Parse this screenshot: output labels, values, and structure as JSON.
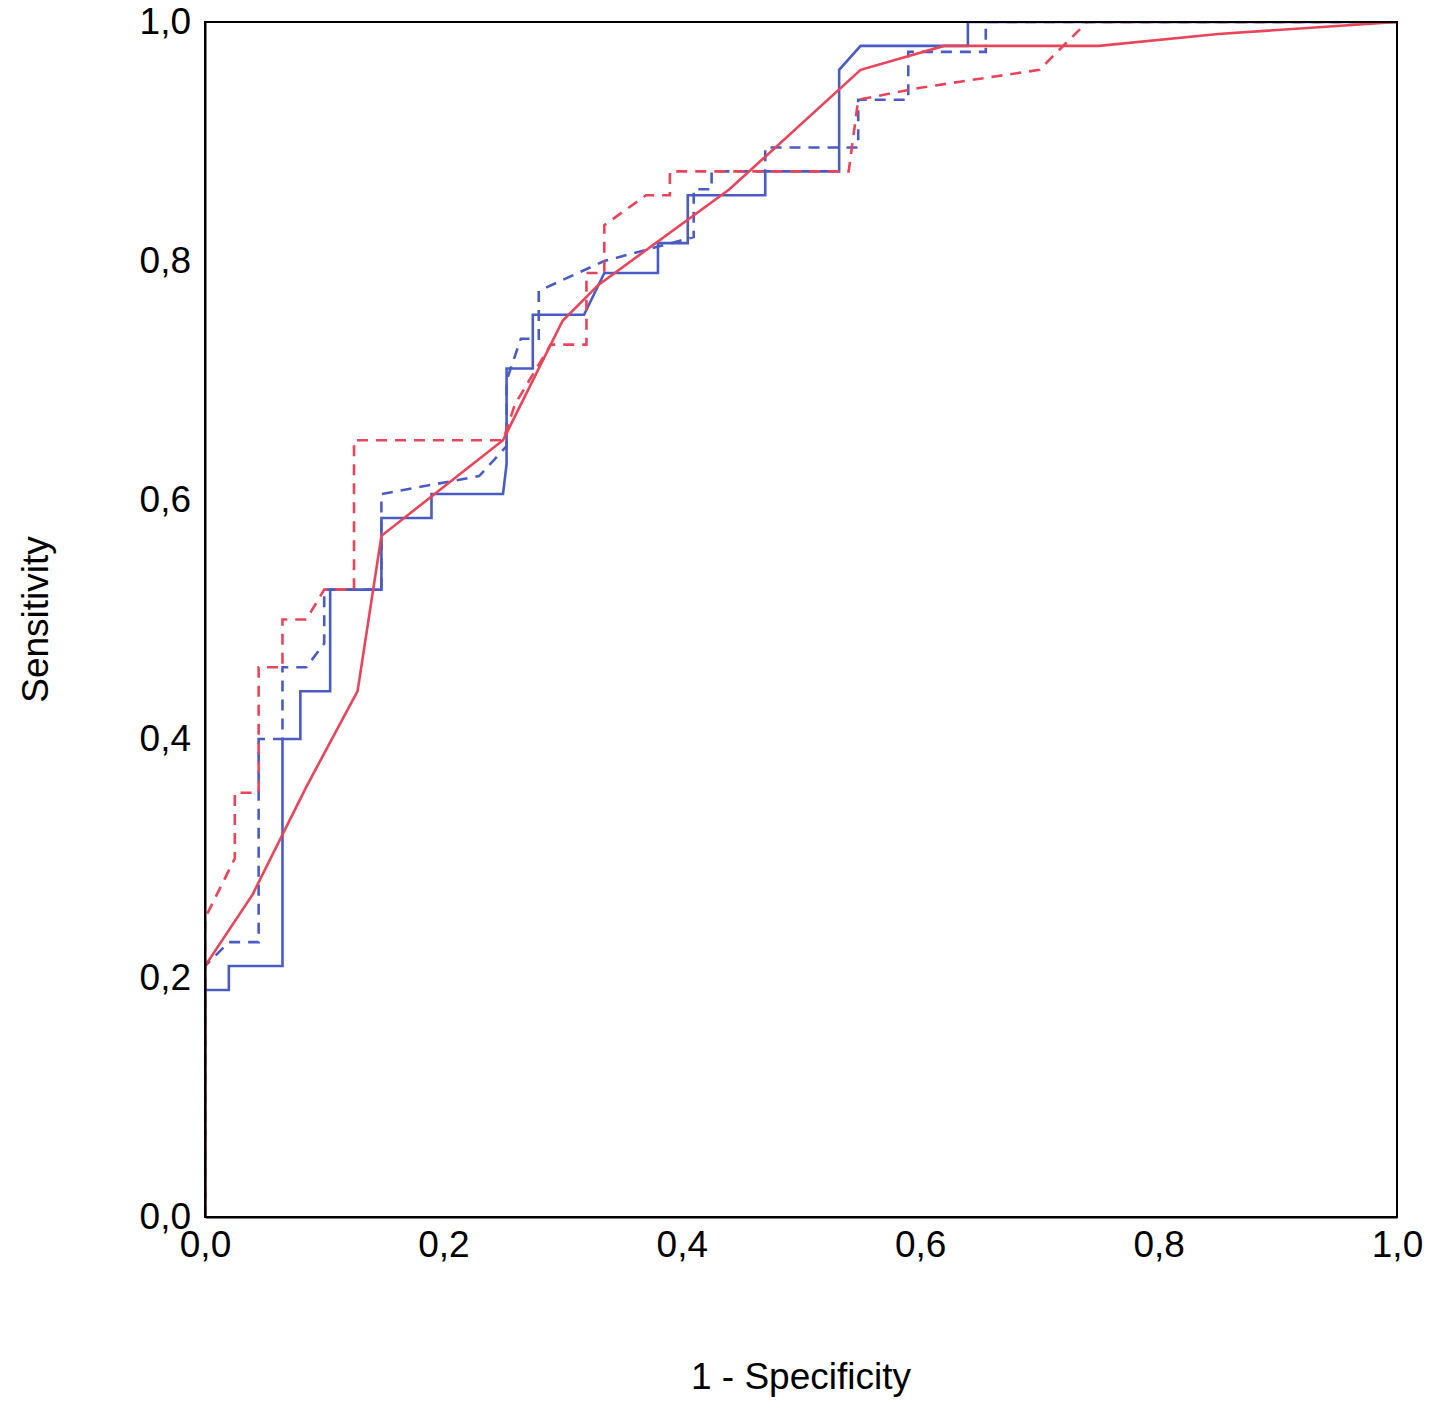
{
  "chart_data": {
    "type": "line",
    "x_label": "1 - Specificity",
    "y_label": "Sensitivity",
    "xlim": [
      0,
      1
    ],
    "ylim": [
      0,
      1
    ],
    "xticks": [
      {
        "value": 0,
        "label": "0,0"
      },
      {
        "value": 0.2,
        "label": "0,2"
      },
      {
        "value": 0.4,
        "label": "0,4"
      },
      {
        "value": 0.6,
        "label": "0,6"
      },
      {
        "value": 0.8,
        "label": "0,8"
      },
      {
        "value": 1,
        "label": "1,0"
      }
    ],
    "yticks": [
      {
        "value": 0,
        "label": "0,0"
      },
      {
        "value": 0.2,
        "label": "0,2"
      },
      {
        "value": 0.4,
        "label": "0,4"
      },
      {
        "value": 0.6,
        "label": "0,6"
      },
      {
        "value": 0.8,
        "label": "0,8"
      },
      {
        "value": 1,
        "label": "1,0"
      }
    ],
    "grid": false,
    "series": [
      {
        "color": "#4a5cc4",
        "line_style": "solid",
        "x": [
          0,
          0,
          0.02,
          0.02,
          0.065,
          0.065,
          0.08,
          0.08,
          0.105,
          0.105,
          0.148,
          0.148,
          0.19,
          0.19,
          0.25,
          0.253,
          0.253,
          0.275,
          0.275,
          0.318,
          0.335,
          0.38,
          0.38,
          0.405,
          0.405,
          0.47,
          0.47,
          0.532,
          0.532,
          0.55,
          0.64,
          0.64,
          1
        ],
        "values": [
          0,
          0.19,
          0.19,
          0.21,
          0.21,
          0.4,
          0.4,
          0.44,
          0.44,
          0.525,
          0.525,
          0.585,
          0.585,
          0.605,
          0.605,
          0.63,
          0.71,
          0.71,
          0.755,
          0.755,
          0.79,
          0.79,
          0.815,
          0.815,
          0.855,
          0.855,
          0.875,
          0.875,
          0.96,
          0.98,
          0.98,
          1,
          1
        ]
      },
      {
        "color": "#4a5cc4",
        "line_style": "dashed",
        "x": [
          0,
          0,
          0.02,
          0.045,
          0.045,
          0.065,
          0.065,
          0.085,
          0.1,
          0.1,
          0.148,
          0.148,
          0.23,
          0.253,
          0.253,
          0.265,
          0.28,
          0.28,
          0.335,
          0.41,
          0.41,
          0.425,
          0.425,
          0.47,
          0.47,
          0.548,
          0.548,
          0.59,
          0.59,
          0.655,
          0.655,
          1
        ],
        "values": [
          0,
          0.21,
          0.23,
          0.23,
          0.4,
          0.4,
          0.46,
          0.46,
          0.48,
          0.525,
          0.525,
          0.605,
          0.62,
          0.645,
          0.7,
          0.735,
          0.735,
          0.775,
          0.8,
          0.82,
          0.86,
          0.86,
          0.875,
          0.875,
          0.895,
          0.895,
          0.935,
          0.935,
          0.975,
          0.975,
          1,
          1
        ]
      },
      {
        "color": "#e8445a",
        "line_style": "solid",
        "x": [
          0,
          0,
          0.04,
          0.085,
          0.128,
          0.148,
          0.25,
          0.3,
          0.33,
          0.44,
          0.55,
          0.62,
          0.75,
          0.85,
          1
        ],
        "values": [
          0,
          0.21,
          0.27,
          0.36,
          0.44,
          0.57,
          0.65,
          0.75,
          0.78,
          0.86,
          0.96,
          0.98,
          0.98,
          0.99,
          1
        ]
      },
      {
        "color": "#e8445a",
        "line_style": "dashed",
        "x": [
          0,
          0,
          0.025,
          0.025,
          0.045,
          0.045,
          0.065,
          0.065,
          0.085,
          0.1,
          0.125,
          0.125,
          0.25,
          0.26,
          0.29,
          0.32,
          0.32,
          0.335,
          0.335,
          0.37,
          0.39,
          0.39,
          0.54,
          0.548,
          0.6,
          0.7,
          0.74,
          1
        ],
        "values": [
          0,
          0.25,
          0.3,
          0.355,
          0.355,
          0.46,
          0.46,
          0.5,
          0.5,
          0.525,
          0.525,
          0.65,
          0.65,
          0.68,
          0.73,
          0.73,
          0.79,
          0.79,
          0.83,
          0.855,
          0.855,
          0.875,
          0.875,
          0.935,
          0.945,
          0.96,
          1,
          1
        ]
      }
    ]
  }
}
